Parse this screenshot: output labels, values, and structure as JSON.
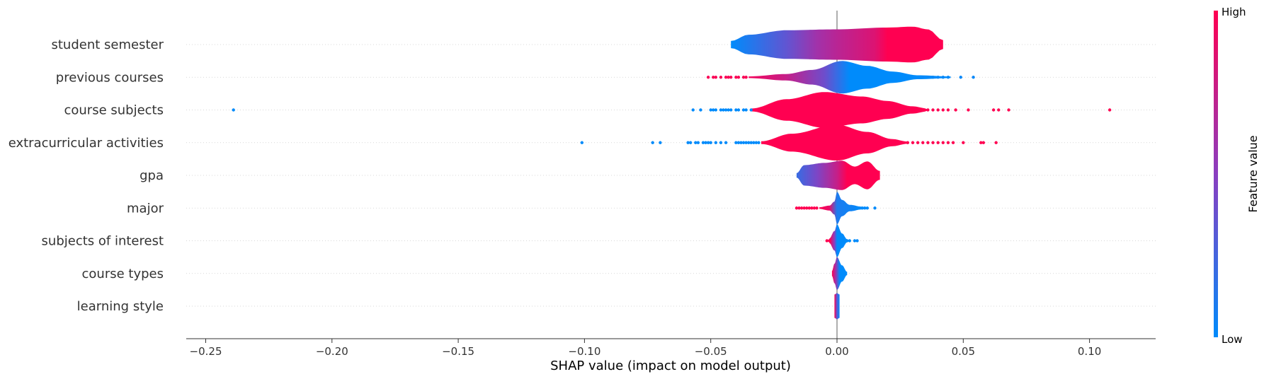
{
  "chart_data": {
    "type": "violin",
    "xlabel": "SHAP value (impact on model output)",
    "xlim": [
      -0.262,
      0.125
    ],
    "ticks": [
      -0.25,
      -0.2,
      -0.15,
      -0.1,
      -0.05,
      0.0,
      0.05,
      0.1
    ],
    "tick_labels": [
      "−0.25",
      "−0.20",
      "−0.15",
      "−0.10",
      "−0.05",
      "0.00",
      "0.05",
      "0.10"
    ],
    "colorbar": {
      "title": "Feature value",
      "high_label": "High",
      "low_label": "Low",
      "low_color": "#008bfb",
      "high_color": "#ff0051"
    },
    "features": [
      {
        "name": "student semester",
        "max_half_width": 0.55,
        "profile": [
          [
            -0.042,
            0.2
          ],
          [
            -0.035,
            0.55
          ],
          [
            -0.02,
            0.8
          ],
          [
            0.0,
            0.85
          ],
          [
            0.02,
            0.95
          ],
          [
            0.03,
            1.0
          ],
          [
            0.036,
            0.85
          ],
          [
            0.042,
            0.25
          ]
        ],
        "colors": [
          [
            -0.042,
            0.0
          ],
          [
            -0.02,
            0.35
          ],
          [
            -0.008,
            0.6
          ],
          [
            0.0,
            0.7
          ],
          [
            0.015,
            0.85
          ],
          [
            0.02,
            1.0
          ],
          [
            0.042,
            1.0
          ]
        ],
        "points": []
      },
      {
        "name": "previous courses",
        "max_half_width": 0.5,
        "profile": [
          [
            -0.035,
            0.05
          ],
          [
            -0.02,
            0.2
          ],
          [
            -0.01,
            0.45
          ],
          [
            0.002,
            1.0
          ],
          [
            0.012,
            0.7
          ],
          [
            0.022,
            0.35
          ],
          [
            0.032,
            0.12
          ],
          [
            0.045,
            0.05
          ]
        ],
        "colors": [
          [
            -0.035,
            0.95
          ],
          [
            -0.02,
            0.75
          ],
          [
            -0.005,
            0.4
          ],
          [
            0.005,
            0.0
          ],
          [
            0.045,
            0.0
          ]
        ],
        "points": [
          [
            -0.051,
            0.98
          ],
          [
            -0.049,
            0.98
          ],
          [
            -0.048,
            0.98
          ],
          [
            -0.046,
            0.98
          ],
          [
            -0.044,
            0.98
          ],
          [
            -0.043,
            0.98
          ],
          [
            -0.042,
            0.98
          ],
          [
            -0.04,
            0.98
          ],
          [
            -0.039,
            0.98
          ],
          [
            -0.037,
            0.98
          ],
          [
            -0.036,
            0.98
          ],
          [
            0.034,
            0.02
          ],
          [
            0.036,
            0.02
          ],
          [
            0.038,
            0.02
          ],
          [
            0.04,
            0.02
          ],
          [
            0.042,
            0.02
          ],
          [
            0.044,
            0.02
          ],
          [
            0.049,
            0.02
          ],
          [
            0.054,
            0.02
          ]
        ]
      },
      {
        "name": "course subjects",
        "max_half_width": 0.55,
        "profile": [
          [
            -0.034,
            0.08
          ],
          [
            -0.02,
            0.6
          ],
          [
            -0.005,
            1.0
          ],
          [
            0.01,
            0.75
          ],
          [
            0.02,
            0.5
          ],
          [
            0.03,
            0.2
          ],
          [
            0.036,
            0.08
          ]
        ],
        "colors": [
          [
            -0.034,
            1.0
          ],
          [
            0.036,
            1.0
          ]
        ],
        "points": [
          [
            -0.239,
            0.0
          ],
          [
            -0.057,
            0.0
          ],
          [
            -0.054,
            0.0
          ],
          [
            -0.05,
            0.0
          ],
          [
            -0.049,
            0.0
          ],
          [
            -0.048,
            0.0
          ],
          [
            -0.046,
            0.0
          ],
          [
            -0.045,
            0.0
          ],
          [
            -0.044,
            0.0
          ],
          [
            -0.043,
            0.0
          ],
          [
            -0.042,
            0.0
          ],
          [
            -0.04,
            0.0
          ],
          [
            -0.039,
            0.0
          ],
          [
            -0.037,
            0.0
          ],
          [
            -0.036,
            0.0
          ],
          [
            -0.034,
            0.0
          ],
          [
            0.036,
            1.0
          ],
          [
            0.038,
            1.0
          ],
          [
            0.04,
            1.0
          ],
          [
            0.042,
            1.0
          ],
          [
            0.044,
            1.0
          ],
          [
            0.047,
            1.0
          ],
          [
            0.052,
            1.0
          ],
          [
            0.062,
            1.0
          ],
          [
            0.064,
            1.0
          ],
          [
            0.068,
            1.0
          ],
          [
            0.108,
            1.0
          ]
        ]
      },
      {
        "name": "extracurricular activities",
        "max_half_width": 0.55,
        "profile": [
          [
            -0.03,
            0.08
          ],
          [
            -0.018,
            0.5
          ],
          [
            0.0,
            1.0
          ],
          [
            0.012,
            0.6
          ],
          [
            0.022,
            0.2
          ],
          [
            0.028,
            0.06
          ]
        ],
        "colors": [
          [
            -0.03,
            1.0
          ],
          [
            0.028,
            1.0
          ]
        ],
        "points": [
          [
            -0.101,
            0.0
          ],
          [
            -0.073,
            0.0
          ],
          [
            -0.07,
            0.0
          ],
          [
            -0.059,
            0.0
          ],
          [
            -0.058,
            0.0
          ],
          [
            -0.056,
            0.0
          ],
          [
            -0.055,
            0.0
          ],
          [
            -0.053,
            0.0
          ],
          [
            -0.052,
            0.0
          ],
          [
            -0.051,
            0.0
          ],
          [
            -0.05,
            0.0
          ],
          [
            -0.048,
            0.0
          ],
          [
            -0.046,
            0.0
          ],
          [
            -0.044,
            0.0
          ],
          [
            -0.04,
            0.0
          ],
          [
            -0.039,
            0.0
          ],
          [
            -0.038,
            0.0
          ],
          [
            -0.037,
            0.0
          ],
          [
            -0.036,
            0.0
          ],
          [
            -0.035,
            0.0
          ],
          [
            -0.034,
            0.0
          ],
          [
            -0.033,
            0.0
          ],
          [
            -0.032,
            0.0
          ],
          [
            -0.031,
            0.0
          ],
          [
            0.028,
            1.0
          ],
          [
            0.03,
            1.0
          ],
          [
            0.032,
            1.0
          ],
          [
            0.034,
            1.0
          ],
          [
            0.036,
            1.0
          ],
          [
            0.038,
            1.0
          ],
          [
            0.04,
            1.0
          ],
          [
            0.042,
            1.0
          ],
          [
            0.044,
            1.0
          ],
          [
            0.046,
            1.0
          ],
          [
            0.05,
            1.0
          ],
          [
            0.057,
            1.0
          ],
          [
            0.058,
            1.0
          ],
          [
            0.063,
            1.0
          ]
        ]
      },
      {
        "name": "gpa",
        "max_half_width": 0.45,
        "profile": [
          [
            -0.016,
            0.15
          ],
          [
            -0.013,
            0.7
          ],
          [
            -0.005,
            0.85
          ],
          [
            0.002,
            1.0
          ],
          [
            0.007,
            0.6
          ],
          [
            0.012,
            0.95
          ],
          [
            0.017,
            0.3
          ]
        ],
        "colors": [
          [
            -0.016,
            0.2
          ],
          [
            -0.008,
            0.45
          ],
          [
            0.0,
            0.75
          ],
          [
            0.004,
            1.0
          ],
          [
            0.017,
            1.0
          ]
        ],
        "points": []
      },
      {
        "name": "major",
        "max_half_width": 0.5,
        "profile": [
          [
            -0.007,
            0.05
          ],
          [
            -0.003,
            0.15
          ],
          [
            -0.001,
            0.4
          ],
          [
            0.0,
            1.0
          ],
          [
            0.002,
            0.5
          ],
          [
            0.005,
            0.2
          ],
          [
            0.01,
            0.08
          ],
          [
            0.012,
            0.05
          ]
        ],
        "colors": [
          [
            -0.007,
            1.0
          ],
          [
            -0.003,
            0.9
          ],
          [
            0.0,
            0.1
          ],
          [
            0.012,
            0.0
          ]
        ],
        "points": [
          [
            -0.016,
            1.0
          ],
          [
            -0.015,
            1.0
          ],
          [
            -0.014,
            1.0
          ],
          [
            -0.013,
            1.0
          ],
          [
            -0.012,
            1.0
          ],
          [
            -0.011,
            1.0
          ],
          [
            -0.01,
            1.0
          ],
          [
            -0.009,
            1.0
          ],
          [
            -0.008,
            1.0
          ],
          [
            0.008,
            0.0
          ],
          [
            0.009,
            0.0
          ],
          [
            0.01,
            0.0
          ],
          [
            0.011,
            0.0
          ],
          [
            0.012,
            0.0
          ],
          [
            0.015,
            0.0
          ]
        ]
      },
      {
        "name": "subjects of interest",
        "max_half_width": 0.5,
        "profile": [
          [
            -0.003,
            0.15
          ],
          [
            -0.001,
            0.6
          ],
          [
            0.0,
            1.0
          ],
          [
            0.002,
            0.45
          ],
          [
            0.004,
            0.1
          ]
        ],
        "colors": [
          [
            -0.003,
            1.0
          ],
          [
            -0.001,
            0.5
          ],
          [
            0.0,
            0.0
          ],
          [
            0.004,
            0.0
          ]
        ],
        "points": [
          [
            -0.004,
            1.0
          ],
          [
            -0.003,
            1.0
          ],
          [
            0.004,
            0.0
          ],
          [
            0.005,
            0.0
          ],
          [
            0.007,
            0.0
          ],
          [
            0.008,
            0.0
          ]
        ]
      },
      {
        "name": "course types",
        "max_half_width": 0.5,
        "profile": [
          [
            -0.002,
            0.15
          ],
          [
            -0.001,
            0.6
          ],
          [
            0.0,
            1.0
          ],
          [
            0.002,
            0.5
          ],
          [
            0.004,
            0.1
          ]
        ],
        "colors": [
          [
            -0.002,
            1.0
          ],
          [
            -0.0005,
            0.6
          ],
          [
            0.001,
            0.0
          ],
          [
            0.004,
            0.0
          ]
        ],
        "points": []
      },
      {
        "name": "learning style",
        "max_half_width": 0.4,
        "profile": [
          [
            -0.001,
            0.9
          ],
          [
            0.0,
            1.0
          ],
          [
            0.001,
            0.9
          ]
        ],
        "colors": [
          [
            -0.001,
            1.0
          ],
          [
            0.0,
            0.3
          ],
          [
            0.001,
            0.0
          ]
        ],
        "points": []
      }
    ]
  }
}
